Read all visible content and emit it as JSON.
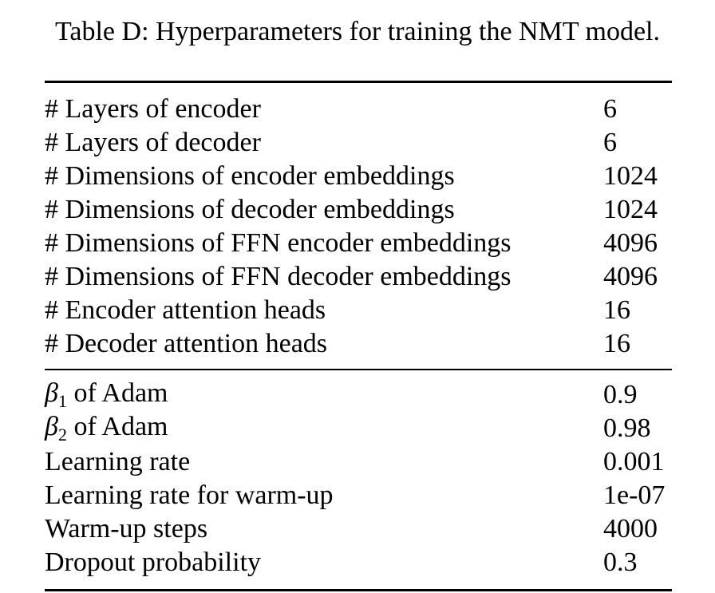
{
  "caption": "Table D: Hyperparameters for training the NMT model.",
  "groups": [
    {
      "rows": [
        {
          "label": "# Layers of encoder",
          "value": "6"
        },
        {
          "label": "# Layers of decoder",
          "value": "6"
        },
        {
          "label": "# Dimensions of encoder embeddings",
          "value": "1024"
        },
        {
          "label": "# Dimensions of decoder embeddings",
          "value": "1024"
        },
        {
          "label": "# Dimensions of FFN encoder embeddings",
          "value": "4096"
        },
        {
          "label": "# Dimensions of FFN decoder embeddings",
          "value": "4096"
        },
        {
          "label": "# Encoder attention heads",
          "value": "16"
        },
        {
          "label": "# Decoder attention heads",
          "value": "16"
        }
      ]
    },
    {
      "rows": [
        {
          "symbol": "β",
          "sub": "1",
          "label": " of Adam",
          "value": "0.9"
        },
        {
          "symbol": "β",
          "sub": "2",
          "label": " of Adam",
          "value": "0.98"
        },
        {
          "label": "Learning rate",
          "value": "0.001"
        },
        {
          "label": "Learning rate for warm-up",
          "value": "1e-07"
        },
        {
          "label": "Warm-up steps",
          "value": "4000"
        },
        {
          "label": "Dropout probability",
          "value": "0.3"
        }
      ]
    }
  ]
}
